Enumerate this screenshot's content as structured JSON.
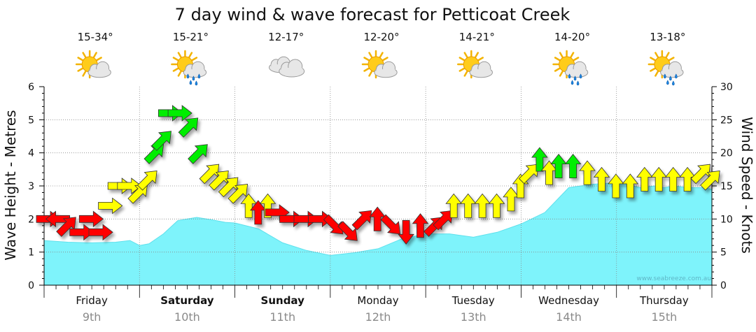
{
  "chart_data": {
    "type": "area",
    "title": "7 day wind & wave forecast for Petticoat Creek",
    "ylabel_left": "Wave Height - Metres",
    "ylabel_right": "Wind Speed - Knots",
    "ylim_left": [
      0,
      6
    ],
    "ylim_right": [
      0,
      30
    ],
    "yticks_left": [
      "0",
      "1",
      "2",
      "3",
      "4",
      "5",
      "6"
    ],
    "yticks_right": [
      "0",
      "5",
      "10",
      "15",
      "20",
      "25",
      "30"
    ],
    "credit": "www.seabreeze.com.au",
    "days": [
      {
        "name": "Friday",
        "date": "9th",
        "temp": "15-34°",
        "icon": "sun-cloud-icon",
        "bold": false
      },
      {
        "name": "Saturday",
        "date": "10th",
        "temp": "15-21°",
        "icon": "sun-cloud-rain-icon",
        "bold": true
      },
      {
        "name": "Sunday",
        "date": "11th",
        "temp": "12-17°",
        "icon": "cloud-icon",
        "bold": true
      },
      {
        "name": "Monday",
        "date": "12th",
        "temp": "12-20°",
        "icon": "sun-cloud-icon",
        "bold": false
      },
      {
        "name": "Tuesday",
        "date": "13th",
        "temp": "14-21°",
        "icon": "sun-cloud-icon",
        "bold": false
      },
      {
        "name": "Wednesday",
        "date": "14th",
        "temp": "14-20°",
        "icon": "sun-cloud-rain-icon",
        "bold": false
      },
      {
        "name": "Thursday",
        "date": "15th",
        "temp": "13-18°",
        "icon": "sun-cloud-rain-icon",
        "bold": false
      }
    ],
    "wave_series": {
      "name": "Wave Height (m)",
      "x_days": [
        0,
        0.25,
        0.5,
        0.75,
        0.9,
        1.0,
        1.1,
        1.25,
        1.4,
        1.5,
        1.6,
        1.75,
        1.9,
        2.0,
        2.25,
        2.5,
        2.75,
        3.0,
        3.25,
        3.5,
        3.75,
        4.0,
        4.25,
        4.5,
        4.75,
        5.0,
        5.25,
        5.5,
        5.75,
        6.0,
        6.1,
        6.25,
        6.4,
        6.5,
        6.6,
        6.75,
        6.9,
        7.0
      ],
      "values": [
        1.35,
        1.3,
        1.28,
        1.3,
        1.35,
        1.2,
        1.25,
        1.55,
        1.95,
        2.0,
        2.05,
        1.98,
        1.9,
        1.88,
        1.7,
        1.28,
        1.05,
        0.9,
        0.98,
        1.1,
        1.4,
        1.55,
        1.55,
        1.45,
        1.6,
        1.85,
        2.2,
        2.95,
        3.05,
        3.1,
        3.05,
        2.95,
        3.0,
        2.95,
        3.0,
        2.95,
        2.95,
        2.9
      ]
    },
    "wind_series": {
      "name": "Wind Speed (knots)",
      "color_legend": {
        "red": "#ff0000",
        "yellow": "#ffff00",
        "green": "#00ee00"
      },
      "points": [
        {
          "x": 0.0,
          "speed": 10.0,
          "dir": "E",
          "color": "red"
        },
        {
          "x": 0.1,
          "speed": 10.0,
          "dir": "W",
          "color": "red"
        },
        {
          "x": 0.2,
          "speed": 9.0,
          "dir": "NE",
          "color": "red"
        },
        {
          "x": 0.35,
          "speed": 8.0,
          "dir": "E",
          "color": "red"
        },
        {
          "x": 0.45,
          "speed": 10.0,
          "dir": "E",
          "color": "red"
        },
        {
          "x": 0.55,
          "speed": 8.0,
          "dir": "E",
          "color": "red"
        },
        {
          "x": 0.65,
          "speed": 12.0,
          "dir": "E",
          "color": "yellow"
        },
        {
          "x": 0.75,
          "speed": 15.0,
          "dir": "E",
          "color": "yellow"
        },
        {
          "x": 0.85,
          "speed": 15.0,
          "dir": "E",
          "color": "yellow"
        },
        {
          "x": 0.95,
          "speed": 14.0,
          "dir": "NE",
          "color": "yellow"
        },
        {
          "x": 1.05,
          "speed": 16.0,
          "dir": "NE",
          "color": "yellow"
        },
        {
          "x": 1.12,
          "speed": 20.0,
          "dir": "NE",
          "color": "green"
        },
        {
          "x": 1.2,
          "speed": 22.0,
          "dir": "NE",
          "color": "green"
        },
        {
          "x": 1.28,
          "speed": 26.0,
          "dir": "E",
          "color": "green"
        },
        {
          "x": 1.38,
          "speed": 26.0,
          "dir": "E",
          "color": "green"
        },
        {
          "x": 1.48,
          "speed": 24.0,
          "dir": "NE",
          "color": "green"
        },
        {
          "x": 1.58,
          "speed": 20.0,
          "dir": "NE",
          "color": "green"
        },
        {
          "x": 1.7,
          "speed": 17.0,
          "dir": "NE",
          "color": "yellow"
        },
        {
          "x": 1.8,
          "speed": 16.0,
          "dir": "NE",
          "color": "yellow"
        },
        {
          "x": 1.9,
          "speed": 15.0,
          "dir": "NE",
          "color": "yellow"
        },
        {
          "x": 2.0,
          "speed": 14.0,
          "dir": "NE",
          "color": "yellow"
        },
        {
          "x": 2.1,
          "speed": 12.0,
          "dir": "N",
          "color": "yellow"
        },
        {
          "x": 2.2,
          "speed": 11.0,
          "dir": "N",
          "color": "red"
        },
        {
          "x": 2.3,
          "speed": 12.0,
          "dir": "N",
          "color": "yellow"
        },
        {
          "x": 2.4,
          "speed": 11.0,
          "dir": "E",
          "color": "red"
        },
        {
          "x": 2.55,
          "speed": 10.0,
          "dir": "E",
          "color": "red"
        },
        {
          "x": 2.7,
          "speed": 10.0,
          "dir": "E",
          "color": "red"
        },
        {
          "x": 2.85,
          "speed": 10.0,
          "dir": "E",
          "color": "red"
        },
        {
          "x": 3.0,
          "speed": 9.0,
          "dir": "SE",
          "color": "red"
        },
        {
          "x": 3.15,
          "speed": 8.0,
          "dir": "SE",
          "color": "red"
        },
        {
          "x": 3.3,
          "speed": 10.0,
          "dir": "NE",
          "color": "red"
        },
        {
          "x": 3.45,
          "speed": 10.0,
          "dir": "N",
          "color": "red"
        },
        {
          "x": 3.6,
          "speed": 9.0,
          "dir": "SE",
          "color": "red"
        },
        {
          "x": 3.75,
          "speed": 8.0,
          "dir": "S",
          "color": "red"
        },
        {
          "x": 3.9,
          "speed": 9.0,
          "dir": "N",
          "color": "red"
        },
        {
          "x": 4.05,
          "speed": 9.0,
          "dir": "NE",
          "color": "red"
        },
        {
          "x": 4.15,
          "speed": 10.0,
          "dir": "NE",
          "color": "red"
        },
        {
          "x": 4.25,
          "speed": 12.0,
          "dir": "N",
          "color": "yellow"
        },
        {
          "x": 4.4,
          "speed": 12.0,
          "dir": "N",
          "color": "yellow"
        },
        {
          "x": 4.55,
          "speed": 12.0,
          "dir": "N",
          "color": "yellow"
        },
        {
          "x": 4.7,
          "speed": 12.0,
          "dir": "N",
          "color": "yellow"
        },
        {
          "x": 4.85,
          "speed": 13.0,
          "dir": "N",
          "color": "yellow"
        },
        {
          "x": 4.95,
          "speed": 15.0,
          "dir": "N",
          "color": "yellow"
        },
        {
          "x": 5.05,
          "speed": 17.0,
          "dir": "NE",
          "color": "yellow"
        },
        {
          "x": 5.15,
          "speed": 19.0,
          "dir": "N",
          "color": "green"
        },
        {
          "x": 5.25,
          "speed": 17.0,
          "dir": "N",
          "color": "yellow"
        },
        {
          "x": 5.35,
          "speed": 18.0,
          "dir": "N",
          "color": "green"
        },
        {
          "x": 5.5,
          "speed": 18.0,
          "dir": "N",
          "color": "green"
        },
        {
          "x": 5.65,
          "speed": 17.0,
          "dir": "N",
          "color": "yellow"
        },
        {
          "x": 5.8,
          "speed": 16.0,
          "dir": "N",
          "color": "yellow"
        },
        {
          "x": 5.95,
          "speed": 15.0,
          "dir": "N",
          "color": "yellow"
        },
        {
          "x": 6.1,
          "speed": 15.0,
          "dir": "N",
          "color": "yellow"
        },
        {
          "x": 6.25,
          "speed": 16.0,
          "dir": "N",
          "color": "yellow"
        },
        {
          "x": 6.4,
          "speed": 16.0,
          "dir": "N",
          "color": "yellow"
        },
        {
          "x": 6.55,
          "speed": 16.0,
          "dir": "N",
          "color": "yellow"
        },
        {
          "x": 6.7,
          "speed": 16.0,
          "dir": "N",
          "color": "yellow"
        },
        {
          "x": 6.85,
          "speed": 17.0,
          "dir": "NE",
          "color": "yellow"
        },
        {
          "x": 6.95,
          "speed": 16.0,
          "dir": "NE",
          "color": "yellow"
        }
      ]
    }
  }
}
